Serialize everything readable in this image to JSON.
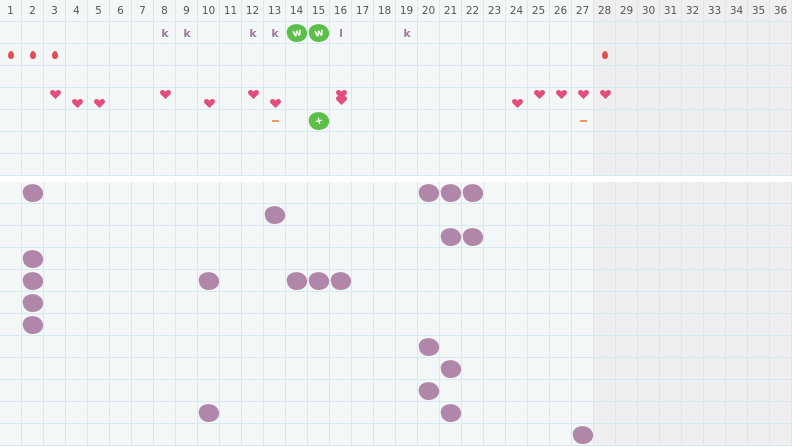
{
  "days": [
    "1",
    "2",
    "3",
    "4",
    "5",
    "6",
    "7",
    "8",
    "9",
    "10",
    "11",
    "12",
    "13",
    "14",
    "15",
    "16",
    "17",
    "18",
    "19",
    "20",
    "21",
    "22",
    "23",
    "24",
    "25",
    "26",
    "27",
    "28",
    "29",
    "30",
    "31",
    "32",
    "33",
    "34",
    "35",
    "36"
  ],
  "shaded_from_day": 28,
  "colors": {
    "grid": "#d5e9f2",
    "cell": "#f3f7f8",
    "shaded": "#efefef",
    "green": "#5dbf4a",
    "purple": "#b087a9",
    "heart": "#e0507a",
    "drop": "#e0504f",
    "dash": "#f0956a",
    "letter": "#a07a9c"
  },
  "top_rows": [
    {
      "row": 1,
      "marks": [
        {
          "day": 8,
          "type": "letter",
          "text": "k"
        },
        {
          "day": 9,
          "type": "letter",
          "text": "k"
        },
        {
          "day": 12,
          "type": "letter",
          "text": "k"
        },
        {
          "day": 13,
          "type": "letter",
          "text": "k"
        },
        {
          "day": 14,
          "type": "green-blob",
          "text": "w"
        },
        {
          "day": 15,
          "type": "green-blob",
          "text": "w"
        },
        {
          "day": 16,
          "type": "letter",
          "text": "l"
        },
        {
          "day": 19,
          "type": "letter",
          "text": "k"
        }
      ]
    },
    {
      "row": 2,
      "marks": [
        {
          "day": 1,
          "type": "drop"
        },
        {
          "day": 2,
          "type": "drop"
        },
        {
          "day": 3,
          "type": "drop"
        },
        {
          "day": 28,
          "type": "drop"
        }
      ]
    },
    {
      "row": 4,
      "marks": [
        {
          "day": 3,
          "type": "heart-high"
        },
        {
          "day": 4,
          "type": "heart-low"
        },
        {
          "day": 5,
          "type": "heart-low"
        },
        {
          "day": 8,
          "type": "heart-high"
        },
        {
          "day": 10,
          "type": "heart-low"
        },
        {
          "day": 12,
          "type": "heart-high"
        },
        {
          "day": 13,
          "type": "heart-low"
        },
        {
          "day": 16,
          "type": "heart-double"
        },
        {
          "day": 24,
          "type": "heart-low"
        },
        {
          "day": 25,
          "type": "heart-high"
        },
        {
          "day": 26,
          "type": "heart-high"
        },
        {
          "day": 27,
          "type": "heart-high"
        },
        {
          "day": 28,
          "type": "heart-high"
        }
      ]
    },
    {
      "row": 5,
      "marks": [
        {
          "day": 13,
          "type": "dash"
        },
        {
          "day": 15,
          "type": "green-blob",
          "text": "+"
        },
        {
          "day": 27,
          "type": "dash"
        }
      ]
    }
  ],
  "bottom_rows": [
    [
      2,
      20,
      21,
      22
    ],
    [
      13
    ],
    [
      21,
      22
    ],
    [
      2
    ],
    [
      2,
      10,
      14,
      15,
      16
    ],
    [
      2
    ],
    [
      2
    ],
    [
      20
    ],
    [
      21
    ],
    [
      20
    ],
    [
      10,
      21
    ],
    [
      27
    ]
  ]
}
